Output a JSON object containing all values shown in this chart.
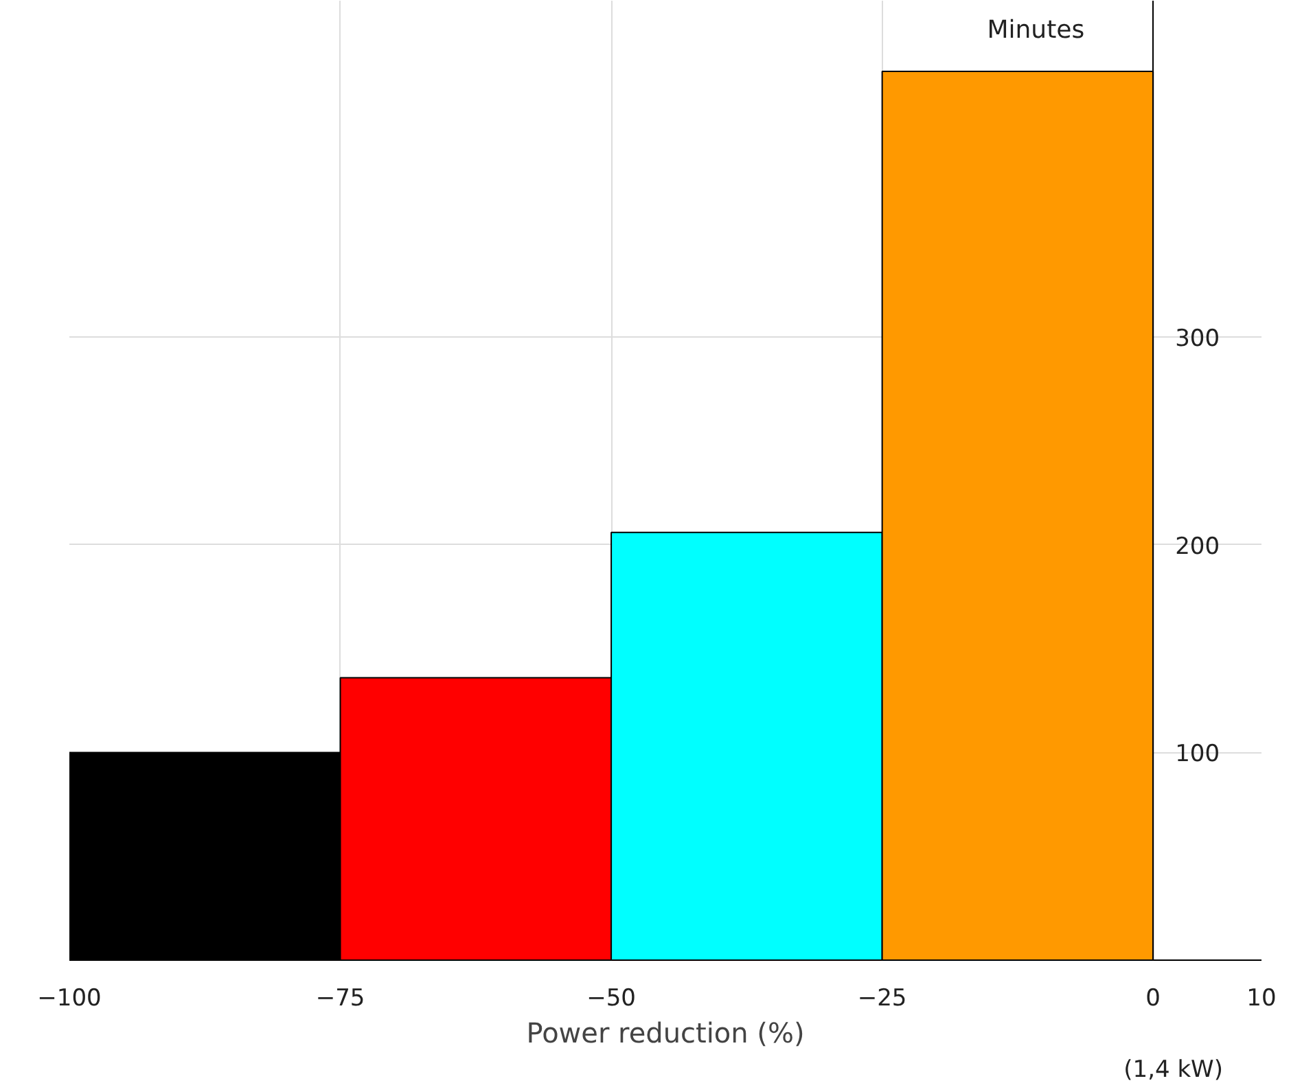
{
  "chart_data": {
    "type": "histogram",
    "xlabel": "Power reduction (%)",
    "ylabel": "Minutes",
    "bins": [
      -100,
      -75,
      -50,
      -25,
      0
    ],
    "values": [
      100,
      136,
      206,
      428
    ],
    "colors": [
      "#000000",
      "#ff0000",
      "#00ffff",
      "#ff9900"
    ],
    "xlim": [
      -100,
      10
    ],
    "xticks": [
      -100,
      -75,
      -50,
      -25,
      0,
      10
    ],
    "ylim": [
      0,
      462
    ],
    "yticks": [
      100,
      200,
      300
    ],
    "grid": true,
    "annotations": [
      "(1,4 kW)"
    ]
  }
}
